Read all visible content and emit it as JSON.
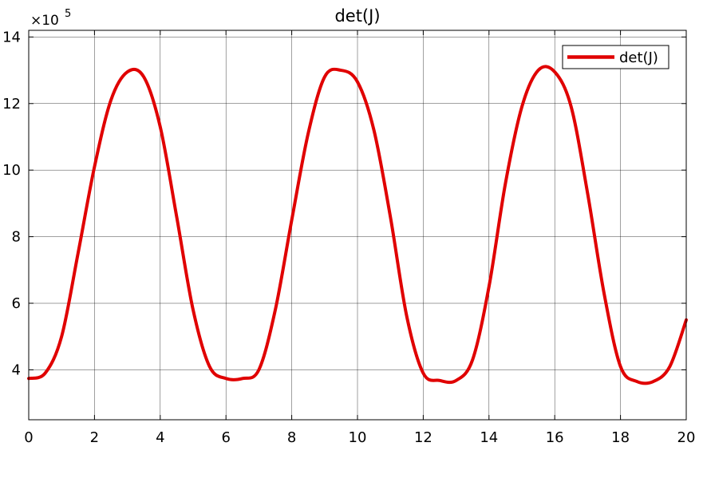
{
  "chart_data": {
    "type": "line",
    "title": "det(J)",
    "xlabel": "",
    "ylabel": "",
    "y_exponent_label": {
      "base": "×10",
      "power": "5"
    },
    "xlim": [
      0,
      20
    ],
    "ylim": [
      2.5,
      14.2
    ],
    "xticks": [
      0,
      2,
      4,
      6,
      8,
      10,
      12,
      14,
      16,
      18,
      20
    ],
    "xtick_labels": [
      "0",
      "2",
      "4",
      "6",
      "8",
      "10",
      "12",
      "14",
      "16",
      "18",
      "20"
    ],
    "yticks": [
      4,
      6,
      8,
      10,
      12,
      14
    ],
    "ytick_labels": [
      "4",
      "6",
      "8",
      "10",
      "12",
      "14"
    ],
    "grid": true,
    "legend_position": "top-right",
    "series": [
      {
        "name": "det(J)",
        "color": "#e00000",
        "x": [
          0,
          0.5,
          1,
          1.5,
          2,
          2.5,
          3,
          3.5,
          4,
          4.5,
          5,
          5.5,
          6,
          6.5,
          7,
          7.5,
          8,
          8.5,
          9,
          9.5,
          10,
          10.5,
          11,
          11.5,
          12,
          12.5,
          13,
          13.5,
          14,
          14.5,
          15,
          15.5,
          16,
          16.5,
          17,
          17.5,
          18,
          18.5,
          19,
          19.5,
          20
        ],
        "y": [
          3.74,
          3.9,
          5.0,
          7.5,
          10.1,
          12.1,
          12.95,
          12.8,
          11.3,
          8.6,
          5.8,
          4.1,
          3.74,
          3.74,
          4.0,
          5.8,
          8.5,
          11.1,
          12.8,
          13.0,
          12.65,
          11.2,
          8.6,
          5.6,
          3.9,
          3.68,
          3.68,
          4.3,
          6.5,
          9.6,
          11.9,
          13.0,
          12.95,
          11.9,
          9.3,
          6.3,
          4.1,
          3.65,
          3.65,
          4.1,
          5.5
        ]
      }
    ]
  }
}
